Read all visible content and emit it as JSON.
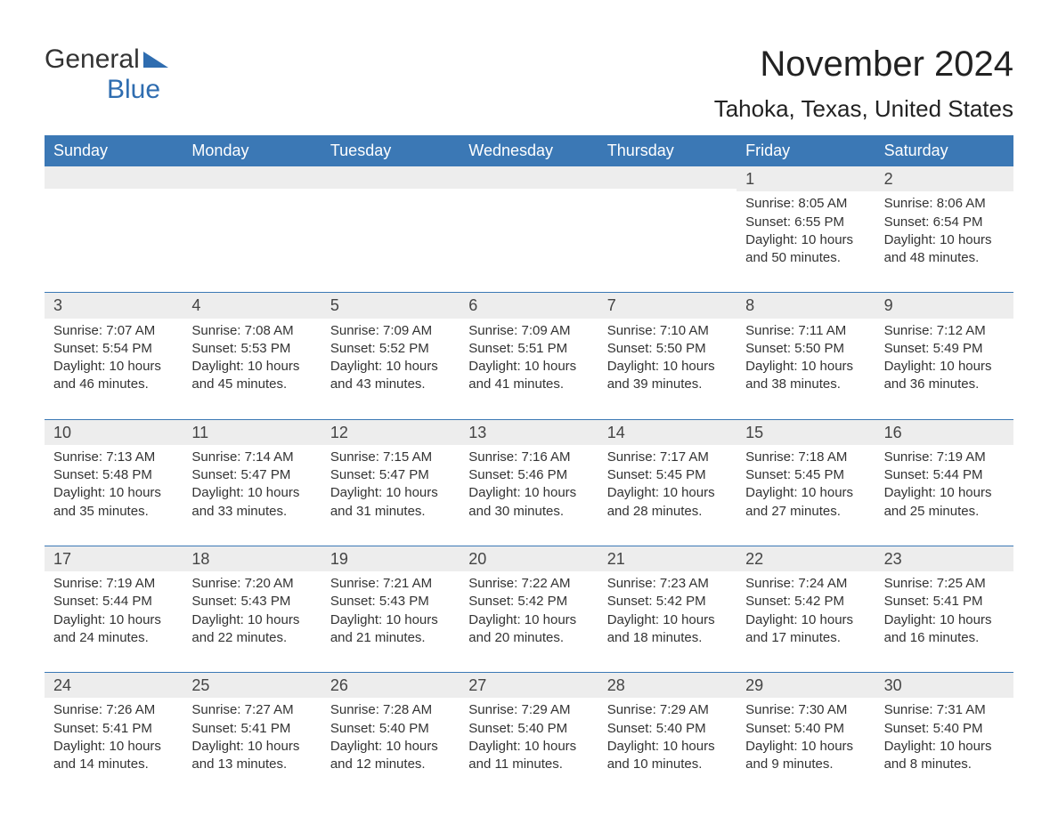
{
  "brand": {
    "part1": "General",
    "part2": "Blue"
  },
  "colors": {
    "header_bg": "#3b78b5",
    "header_text": "#ffffff",
    "daynum_bg": "#ededed",
    "rule": "#3b78b5",
    "brand_blue": "#2f6db0",
    "body_text": "#333333",
    "page_bg": "#ffffff"
  },
  "title": "November 2024",
  "location": "Tahoka, Texas, United States",
  "day_names": [
    "Sunday",
    "Monday",
    "Tuesday",
    "Wednesday",
    "Thursday",
    "Friday",
    "Saturday"
  ],
  "weeks": [
    [
      null,
      null,
      null,
      null,
      null,
      {
        "n": "1",
        "sunrise": "Sunrise: 8:05 AM",
        "sunset": "Sunset: 6:55 PM",
        "day1": "Daylight: 10 hours",
        "day2": "and 50 minutes."
      },
      {
        "n": "2",
        "sunrise": "Sunrise: 8:06 AM",
        "sunset": "Sunset: 6:54 PM",
        "day1": "Daylight: 10 hours",
        "day2": "and 48 minutes."
      }
    ],
    [
      {
        "n": "3",
        "sunrise": "Sunrise: 7:07 AM",
        "sunset": "Sunset: 5:54 PM",
        "day1": "Daylight: 10 hours",
        "day2": "and 46 minutes."
      },
      {
        "n": "4",
        "sunrise": "Sunrise: 7:08 AM",
        "sunset": "Sunset: 5:53 PM",
        "day1": "Daylight: 10 hours",
        "day2": "and 45 minutes."
      },
      {
        "n": "5",
        "sunrise": "Sunrise: 7:09 AM",
        "sunset": "Sunset: 5:52 PM",
        "day1": "Daylight: 10 hours",
        "day2": "and 43 minutes."
      },
      {
        "n": "6",
        "sunrise": "Sunrise: 7:09 AM",
        "sunset": "Sunset: 5:51 PM",
        "day1": "Daylight: 10 hours",
        "day2": "and 41 minutes."
      },
      {
        "n": "7",
        "sunrise": "Sunrise: 7:10 AM",
        "sunset": "Sunset: 5:50 PM",
        "day1": "Daylight: 10 hours",
        "day2": "and 39 minutes."
      },
      {
        "n": "8",
        "sunrise": "Sunrise: 7:11 AM",
        "sunset": "Sunset: 5:50 PM",
        "day1": "Daylight: 10 hours",
        "day2": "and 38 minutes."
      },
      {
        "n": "9",
        "sunrise": "Sunrise: 7:12 AM",
        "sunset": "Sunset: 5:49 PM",
        "day1": "Daylight: 10 hours",
        "day2": "and 36 minutes."
      }
    ],
    [
      {
        "n": "10",
        "sunrise": "Sunrise: 7:13 AM",
        "sunset": "Sunset: 5:48 PM",
        "day1": "Daylight: 10 hours",
        "day2": "and 35 minutes."
      },
      {
        "n": "11",
        "sunrise": "Sunrise: 7:14 AM",
        "sunset": "Sunset: 5:47 PM",
        "day1": "Daylight: 10 hours",
        "day2": "and 33 minutes."
      },
      {
        "n": "12",
        "sunrise": "Sunrise: 7:15 AM",
        "sunset": "Sunset: 5:47 PM",
        "day1": "Daylight: 10 hours",
        "day2": "and 31 minutes."
      },
      {
        "n": "13",
        "sunrise": "Sunrise: 7:16 AM",
        "sunset": "Sunset: 5:46 PM",
        "day1": "Daylight: 10 hours",
        "day2": "and 30 minutes."
      },
      {
        "n": "14",
        "sunrise": "Sunrise: 7:17 AM",
        "sunset": "Sunset: 5:45 PM",
        "day1": "Daylight: 10 hours",
        "day2": "and 28 minutes."
      },
      {
        "n": "15",
        "sunrise": "Sunrise: 7:18 AM",
        "sunset": "Sunset: 5:45 PM",
        "day1": "Daylight: 10 hours",
        "day2": "and 27 minutes."
      },
      {
        "n": "16",
        "sunrise": "Sunrise: 7:19 AM",
        "sunset": "Sunset: 5:44 PM",
        "day1": "Daylight: 10 hours",
        "day2": "and 25 minutes."
      }
    ],
    [
      {
        "n": "17",
        "sunrise": "Sunrise: 7:19 AM",
        "sunset": "Sunset: 5:44 PM",
        "day1": "Daylight: 10 hours",
        "day2": "and 24 minutes."
      },
      {
        "n": "18",
        "sunrise": "Sunrise: 7:20 AM",
        "sunset": "Sunset: 5:43 PM",
        "day1": "Daylight: 10 hours",
        "day2": "and 22 minutes."
      },
      {
        "n": "19",
        "sunrise": "Sunrise: 7:21 AM",
        "sunset": "Sunset: 5:43 PM",
        "day1": "Daylight: 10 hours",
        "day2": "and 21 minutes."
      },
      {
        "n": "20",
        "sunrise": "Sunrise: 7:22 AM",
        "sunset": "Sunset: 5:42 PM",
        "day1": "Daylight: 10 hours",
        "day2": "and 20 minutes."
      },
      {
        "n": "21",
        "sunrise": "Sunrise: 7:23 AM",
        "sunset": "Sunset: 5:42 PM",
        "day1": "Daylight: 10 hours",
        "day2": "and 18 minutes."
      },
      {
        "n": "22",
        "sunrise": "Sunrise: 7:24 AM",
        "sunset": "Sunset: 5:42 PM",
        "day1": "Daylight: 10 hours",
        "day2": "and 17 minutes."
      },
      {
        "n": "23",
        "sunrise": "Sunrise: 7:25 AM",
        "sunset": "Sunset: 5:41 PM",
        "day1": "Daylight: 10 hours",
        "day2": "and 16 minutes."
      }
    ],
    [
      {
        "n": "24",
        "sunrise": "Sunrise: 7:26 AM",
        "sunset": "Sunset: 5:41 PM",
        "day1": "Daylight: 10 hours",
        "day2": "and 14 minutes."
      },
      {
        "n": "25",
        "sunrise": "Sunrise: 7:27 AM",
        "sunset": "Sunset: 5:41 PM",
        "day1": "Daylight: 10 hours",
        "day2": "and 13 minutes."
      },
      {
        "n": "26",
        "sunrise": "Sunrise: 7:28 AM",
        "sunset": "Sunset: 5:40 PM",
        "day1": "Daylight: 10 hours",
        "day2": "and 12 minutes."
      },
      {
        "n": "27",
        "sunrise": "Sunrise: 7:29 AM",
        "sunset": "Sunset: 5:40 PM",
        "day1": "Daylight: 10 hours",
        "day2": "and 11 minutes."
      },
      {
        "n": "28",
        "sunrise": "Sunrise: 7:29 AM",
        "sunset": "Sunset: 5:40 PM",
        "day1": "Daylight: 10 hours",
        "day2": "and 10 minutes."
      },
      {
        "n": "29",
        "sunrise": "Sunrise: 7:30 AM",
        "sunset": "Sunset: 5:40 PM",
        "day1": "Daylight: 10 hours",
        "day2": "and 9 minutes."
      },
      {
        "n": "30",
        "sunrise": "Sunrise: 7:31 AM",
        "sunset": "Sunset: 5:40 PM",
        "day1": "Daylight: 10 hours",
        "day2": "and 8 minutes."
      }
    ]
  ]
}
